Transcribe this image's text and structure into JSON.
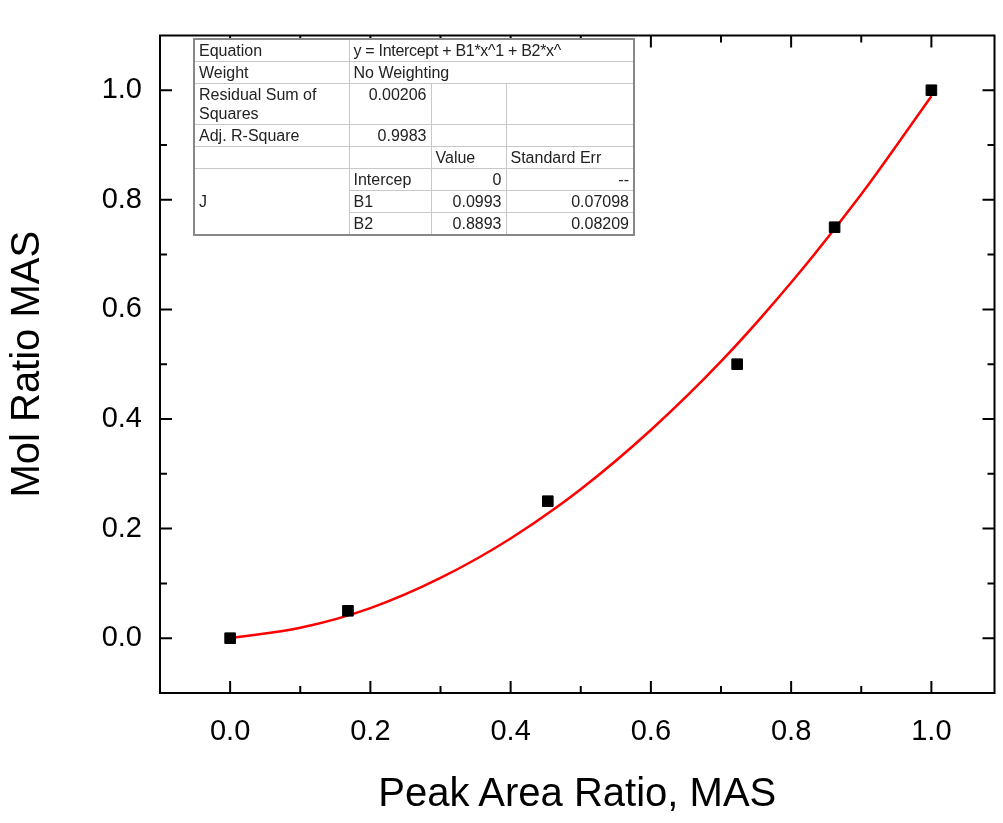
{
  "chart_data": {
    "type": "scatter",
    "xlabel": "Peak Area Ratio, MAS",
    "ylabel": "Mol Ratio MAS",
    "xlim": [
      -0.1,
      1.09
    ],
    "ylim": [
      -0.1,
      1.1
    ],
    "xticks": [
      {
        "value": 0,
        "label": "0.0"
      },
      {
        "value": 0.1,
        "label": null
      },
      {
        "value": 0.2,
        "label": "0.2"
      },
      {
        "value": 0.3,
        "label": null
      },
      {
        "value": 0.4,
        "label": "0.4"
      },
      {
        "value": 0.5,
        "label": null
      },
      {
        "value": 0.6,
        "label": "0.6"
      },
      {
        "value": 0.7,
        "label": null
      },
      {
        "value": 0.8,
        "label": "0.8"
      },
      {
        "value": 0.9,
        "label": null
      },
      {
        "value": 1,
        "label": "1.0"
      }
    ],
    "yticks": [
      {
        "value": 0,
        "label": "0.0"
      },
      {
        "value": 0.1,
        "label": null
      },
      {
        "value": 0.2,
        "label": "0.2"
      },
      {
        "value": 0.3,
        "label": null
      },
      {
        "value": 0.4,
        "label": "0.4"
      },
      {
        "value": 0.5,
        "label": null
      },
      {
        "value": 0.6,
        "label": "0.6"
      },
      {
        "value": 0.7,
        "label": null
      },
      {
        "value": 0.8,
        "label": "0.8"
      },
      {
        "value": 0.9,
        "label": null
      },
      {
        "value": 1,
        "label": "1.0"
      }
    ],
    "grid": false,
    "legend": false,
    "series": [
      {
        "type": "scatter",
        "color": "#000000",
        "marker": "square",
        "x": [
          0,
          0.168,
          0.453,
          0.723,
          0.862,
          1.0
        ],
        "values": [
          0,
          0.05,
          0.25,
          0.5,
          0.75,
          1.0
        ]
      },
      {
        "type": "line",
        "color": "#ff0000",
        "marker": "none",
        "line_style": "solid",
        "x": [
          0,
          0.1,
          0.2,
          0.3,
          0.4,
          0.5,
          0.6,
          0.7,
          0.8,
          0.9,
          1.0
        ],
        "values": [
          0,
          0.019,
          0.055,
          0.11,
          0.182,
          0.272,
          0.38,
          0.505,
          0.649,
          0.81,
          0.989
        ]
      }
    ],
    "annotations": [
      "Equation",
      "y = Intercept + B1*x^1 + B2*x^",
      "Weight",
      "No Weighting",
      "Residual Sum of Squares",
      "0.00206",
      "Adj. R-Square",
      "0.9983",
      "Value",
      "Standard Err",
      "J",
      "Intercep",
      "0",
      "--",
      "B1",
      "0.0993",
      "0.07098",
      "B2",
      "0.8893",
      "0.08209"
    ]
  }
}
